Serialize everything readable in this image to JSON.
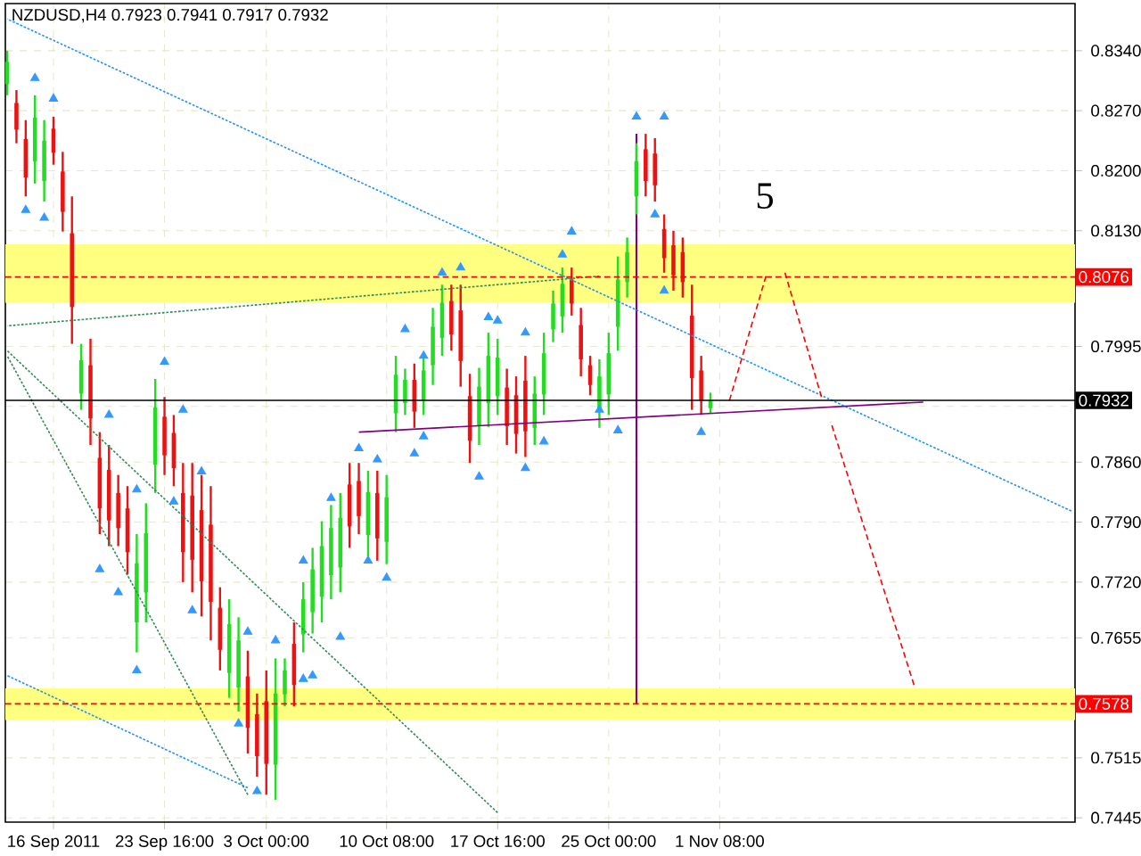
{
  "chart_data": {
    "type": "candlestick",
    "title": "NZDUSD,H4  0.7923 0.7941 0.7917 0.7932",
    "categories": [
      null,
      null,
      null,
      null,
      null,
      "16 Sep 2011",
      null,
      null,
      null,
      null,
      null,
      null,
      null,
      null,
      null,
      null,
      null,
      "23 Sep 16:00",
      null,
      null,
      null,
      null,
      null,
      null,
      null,
      null,
      null,
      null,
      "3 Oct 00:00",
      null,
      null,
      null,
      null,
      null,
      null,
      null,
      null,
      null,
      null,
      null,
      null,
      "10 Oct 08:00",
      null,
      null,
      null,
      null,
      null,
      null,
      null,
      null,
      null,
      null,
      null,
      "17 Oct 16:00",
      null,
      null,
      null,
      null,
      null,
      null,
      null,
      null,
      null,
      null,
      null,
      "25 Oct 00:00",
      null,
      null,
      null,
      null,
      null,
      null,
      null,
      null,
      null,
      null,
      null,
      "1 Nov 08:00",
      null,
      null,
      null,
      null,
      null,
      null,
      null,
      null,
      null,
      null,
      null,
      null,
      null,
      null,
      null,
      null,
      null,
      null,
      null,
      null,
      null,
      null,
      null,
      null,
      null,
      null,
      null,
      null,
      null,
      null,
      null,
      null,
      null,
      null,
      null,
      null,
      null,
      null
    ],
    "ohlc": [
      [
        0.8301,
        0.834,
        0.8288,
        0.8327
      ],
      [
        0.8279,
        0.8294,
        0.8232,
        0.8248
      ],
      [
        0.8237,
        0.8259,
        0.817,
        0.8192
      ],
      [
        0.8211,
        0.8288,
        0.8185,
        0.8262
      ],
      [
        0.8188,
        0.8259,
        0.8164,
        0.8235
      ],
      [
        0.8249,
        0.8263,
        0.8207,
        0.8221
      ],
      [
        0.8199,
        0.8222,
        0.8129,
        0.8152
      ],
      [
        0.8127,
        0.817,
        0.7998,
        0.8041
      ],
      [
        0.794,
        0.7998,
        0.7921,
        0.7979
      ],
      [
        0.7973,
        0.8004,
        0.788,
        0.7911
      ],
      [
        0.7865,
        0.7895,
        0.7776,
        0.7806
      ],
      [
        0.7851,
        0.788,
        0.7762,
        0.7792
      ],
      [
        0.7824,
        0.7845,
        0.7762,
        0.7783
      ],
      [
        0.7806,
        0.7832,
        0.7729,
        0.7755
      ],
      [
        0.7673,
        0.7776,
        0.7638,
        0.7742
      ],
      [
        0.7708,
        0.7812,
        0.7673,
        0.7777
      ],
      [
        0.7857,
        0.7957,
        0.7824,
        0.7924
      ],
      [
        0.7913,
        0.7936,
        0.7845,
        0.7868
      ],
      [
        0.7894,
        0.7915,
        0.7832,
        0.7853
      ],
      [
        0.7824,
        0.7859,
        0.772,
        0.7755
      ],
      [
        0.7821,
        0.7859,
        0.7708,
        0.7746
      ],
      [
        0.7804,
        0.7845,
        0.768,
        0.7721
      ],
      [
        0.7787,
        0.7832,
        0.7652,
        0.7697
      ],
      [
        0.769,
        0.7714,
        0.7617,
        0.7641
      ],
      [
        0.7614,
        0.77,
        0.7585,
        0.7671
      ],
      [
        0.7597,
        0.7679,
        0.7569,
        0.7652
      ],
      [
        0.761,
        0.764,
        0.752,
        0.755
      ],
      [
        0.7566,
        0.759,
        0.7493,
        0.7517
      ],
      [
        0.7581,
        0.7617,
        0.7472,
        0.7508
      ],
      [
        0.7507,
        0.7631,
        0.7466,
        0.759
      ],
      [
        0.7589,
        0.7631,
        0.7575,
        0.7617
      ],
      [
        0.7648,
        0.7673,
        0.7575,
        0.76
      ],
      [
        0.7659,
        0.772,
        0.7638,
        0.77
      ],
      [
        0.7685,
        0.776,
        0.766,
        0.7735
      ],
      [
        0.7703,
        0.7791,
        0.7673,
        0.7762
      ],
      [
        0.7728,
        0.781,
        0.77,
        0.7783
      ],
      [
        0.7737,
        0.7824,
        0.7708,
        0.7795
      ],
      [
        0.7834,
        0.7859,
        0.776,
        0.7785
      ],
      [
        0.7838,
        0.7859,
        0.7776,
        0.7797
      ],
      [
        0.7775,
        0.785,
        0.775,
        0.7825
      ],
      [
        0.7824,
        0.785,
        0.7745,
        0.7771
      ],
      [
        0.7767,
        0.7845,
        0.7741,
        0.7819
      ],
      [
        0.7917,
        0.7984,
        0.7895,
        0.7962
      ],
      [
        0.7929,
        0.7969,
        0.7915,
        0.7956
      ],
      [
        0.7956,
        0.7975,
        0.79,
        0.7919
      ],
      [
        0.7932,
        0.7984,
        0.7915,
        0.7967
      ],
      [
        0.7973,
        0.804,
        0.795,
        0.8018
      ],
      [
        0.8005,
        0.8067,
        0.7984,
        0.8046
      ],
      [
        0.8048,
        0.8067,
        0.799,
        0.8009
      ],
      [
        0.8037,
        0.8067,
        0.7948,
        0.7978
      ],
      [
        0.7937,
        0.7963,
        0.7859,
        0.7885
      ],
      [
        0.7903,
        0.797,
        0.788,
        0.7948
      ],
      [
        0.7929,
        0.8011,
        0.7901,
        0.7984
      ],
      [
        0.7937,
        0.8004,
        0.7915,
        0.7982
      ],
      [
        0.7947,
        0.7969,
        0.788,
        0.7902
      ],
      [
        0.7938,
        0.796,
        0.787,
        0.7893
      ],
      [
        0.7955,
        0.7984,
        0.7866,
        0.7896
      ],
      [
        0.79,
        0.796,
        0.788,
        0.794
      ],
      [
        0.7939,
        0.8011,
        0.7915,
        0.7987
      ],
      [
        0.8015,
        0.806,
        0.8,
        0.8045
      ],
      [
        0.803,
        0.8087,
        0.8011,
        0.8068
      ],
      [
        0.8073,
        0.8087,
        0.8031,
        0.8045
      ],
      [
        0.802,
        0.804,
        0.796,
        0.798
      ],
      [
        0.7973,
        0.7984,
        0.7938,
        0.795
      ],
      [
        0.792,
        0.798,
        0.79,
        0.796
      ],
      [
        0.7939,
        0.8011,
        0.7915,
        0.7987
      ],
      [
        0.8018,
        0.81,
        0.799,
        0.8073
      ],
      [
        0.807,
        0.8122,
        0.8052,
        0.8105
      ],
      [
        0.817,
        0.8232,
        0.8149,
        0.8211
      ],
      [
        0.8225,
        0.8243,
        0.817,
        0.8188
      ],
      [
        0.822,
        0.8238,
        0.8164,
        0.8183
      ],
      [
        0.8132,
        0.8149,
        0.8081,
        0.8098
      ],
      [
        0.8113,
        0.813,
        0.806,
        0.8078
      ],
      [
        0.8105,
        0.8122,
        0.8052,
        0.807
      ],
      [
        0.8031,
        0.8067,
        0.7921,
        0.7958
      ],
      [
        0.7967,
        0.7984,
        0.7915,
        0.7932
      ],
      [
        0.7923,
        0.7941,
        0.7917,
        0.7932
      ],
      null,
      null,
      null,
      null,
      null,
      null,
      null,
      null,
      null,
      null,
      null,
      null,
      null,
      null,
      null,
      null,
      null,
      null,
      null,
      null,
      null,
      null,
      null,
      null,
      null,
      null,
      null,
      null,
      null,
      null,
      null,
      null,
      null,
      null,
      null,
      null,
      null,
      null,
      null
    ],
    "colors": [
      "#22dd22",
      "#ee1111",
      "#ee1111",
      "#22dd22",
      "#22dd22",
      "#ee1111",
      "#ee1111",
      "#ee1111",
      "#22dd22",
      "#ee1111",
      "#ee1111",
      "#ee1111",
      "#ee1111",
      "#ee1111",
      "#22dd22",
      "#22dd22",
      "#22dd22",
      "#ee1111",
      "#ee1111",
      "#ee1111",
      "#ee1111",
      "#ee1111",
      "#ee1111",
      "#ee1111",
      "#22dd22",
      "#22dd22",
      "#ee1111",
      "#ee1111",
      "#ee1111",
      "#22dd22",
      "#22dd22",
      "#ee1111",
      "#22dd22",
      "#22dd22",
      "#22dd22",
      "#22dd22",
      "#22dd22",
      "#ee1111",
      "#ee1111",
      "#22dd22",
      "#ee1111",
      "#22dd22",
      "#22dd22",
      "#22dd22",
      "#ee1111",
      "#22dd22",
      "#22dd22",
      "#22dd22",
      "#ee1111",
      "#ee1111",
      "#ee1111",
      "#22dd22",
      "#22dd22",
      "#22dd22",
      "#ee1111",
      "#ee1111",
      "#ee1111",
      "#22dd22",
      "#22dd22",
      "#22dd22",
      "#22dd22",
      "#ee1111",
      "#ee1111",
      "#ee1111",
      "#22dd22",
      "#22dd22",
      "#22dd22",
      "#22dd22",
      "#22dd22",
      "#ee1111",
      "#ee1111",
      "#ee1111",
      "#ee1111",
      "#ee1111",
      "#ee1111",
      "#ee1111",
      "#22dd22",
      null,
      null,
      null,
      null,
      null,
      null,
      null,
      null,
      null,
      null,
      null,
      null,
      null,
      null,
      null,
      null,
      null,
      null,
      null,
      null,
      null,
      null,
      null,
      null,
      null,
      null,
      null,
      null,
      null,
      null,
      null,
      null,
      null,
      null,
      null,
      null,
      null,
      null,
      null
    ],
    "ylim": [
      0.744,
      0.8395
    ],
    "yticks": [
      {
        "value": 0.834,
        "label": "0.8340"
      },
      {
        "value": 0.827,
        "label": "0.8270"
      },
      {
        "value": 0.82,
        "label": "0.8200"
      },
      {
        "value": 0.813,
        "label": "0.8130"
      },
      {
        "value": 0.8065,
        "label": null
      },
      {
        "value": 0.7995,
        "label": "0.7995"
      },
      {
        "value": 0.7925,
        "label": null
      },
      {
        "value": 0.786,
        "label": "0.7860"
      },
      {
        "value": 0.779,
        "label": "0.7790"
      },
      {
        "value": 0.772,
        "label": "0.7720"
      },
      {
        "value": 0.7655,
        "label": "0.7655"
      },
      {
        "value": 0.7585,
        "label": null
      },
      {
        "value": 0.7515,
        "label": "0.7515"
      },
      {
        "value": 0.7445,
        "label": "0.7445"
      }
    ],
    "grid": true,
    "bands": [
      {
        "axis": "y",
        "from": 0.8046,
        "to": 0.8114,
        "color": "#ffff80"
      },
      {
        "axis": "y",
        "from": 0.7559,
        "to": 0.7596,
        "color": "#ffff80"
      }
    ],
    "ref_lines": [
      {
        "axis": "y",
        "value": 0.8076,
        "label": "0.8076",
        "color": "#ff0000",
        "line_style": "dashed"
      },
      {
        "axis": "y",
        "value": 0.7578,
        "label": "0.7578",
        "color": "#ff0000",
        "line_style": "dashed"
      },
      {
        "axis": "y",
        "value": 0.7932,
        "label": "0.7932",
        "color": "#000000",
        "line_style": "solid"
      }
    ],
    "annotations": [
      "5"
    ],
    "series": [
      {
        "type": "line",
        "color": "#1e90ff",
        "line_style": "dotted",
        "values": [
          0.8377,
          null,
          null,
          null,
          null,
          null,
          null,
          null,
          null,
          null,
          null,
          null,
          null,
          null,
          null,
          null,
          null,
          null,
          null,
          null,
          null,
          null,
          null,
          null,
          null,
          null,
          null,
          null,
          null,
          null,
          null,
          null,
          null,
          null,
          null,
          null,
          null,
          null,
          null,
          null,
          null,
          null,
          null,
          null,
          null,
          null,
          null,
          null,
          null,
          null,
          null,
          null,
          null,
          null,
          null,
          null,
          null,
          null,
          null,
          null,
          null,
          null,
          null,
          null,
          null,
          null,
          null,
          null,
          null,
          null,
          null,
          null,
          null,
          null,
          null,
          null,
          null,
          null,
          null,
          null,
          null,
          null,
          null,
          null,
          null,
          null,
          null,
          null,
          null,
          null,
          null,
          null,
          null,
          null,
          null,
          null,
          null,
          null,
          null,
          null,
          null,
          null,
          null,
          null,
          null,
          null,
          null,
          null,
          null,
          null,
          null,
          null,
          null,
          null,
          null,
          0.7803
        ]
      },
      {
        "type": "line",
        "color": "#1e90ff",
        "line_style": "dotted",
        "values": [
          0.7611,
          null,
          null,
          null,
          null,
          null,
          null,
          null,
          null,
          null,
          null,
          null,
          null,
          null,
          null,
          null,
          null,
          null,
          null,
          null,
          null,
          null,
          null,
          null,
          null,
          null,
          0.748,
          null,
          null,
          null,
          null,
          null,
          null,
          null,
          null,
          null,
          null,
          null,
          null,
          null,
          null,
          null,
          null,
          null,
          null,
          null,
          null,
          null,
          null,
          null,
          null,
          null,
          null,
          null,
          null,
          null,
          null,
          null,
          null,
          null,
          null,
          null,
          null,
          null,
          null,
          null,
          null,
          null,
          null,
          null,
          null,
          null,
          null,
          null,
          null,
          null,
          null,
          null,
          null,
          null,
          null,
          null,
          null,
          null,
          null,
          null,
          null,
          null,
          null,
          null,
          null,
          null,
          null,
          null,
          null,
          null,
          null,
          null,
          null,
          null,
          null,
          null,
          null,
          null,
          null,
          null,
          null,
          null,
          null,
          null,
          null,
          null,
          null,
          null,
          null,
          null
        ]
      },
      {
        "type": "line",
        "color": "#2e8b57",
        "line_style": "dotted",
        "values": [
          0.8019,
          null,
          null,
          null,
          null,
          null,
          null,
          null,
          null,
          null,
          null,
          null,
          null,
          null,
          null,
          null,
          null,
          null,
          null,
          null,
          null,
          null,
          null,
          null,
          null,
          null,
          null,
          null,
          null,
          null,
          null,
          null,
          null,
          null,
          null,
          null,
          null,
          null,
          null,
          null,
          null,
          null,
          null,
          null,
          null,
          null,
          null,
          null,
          null,
          null,
          null,
          null,
          null,
          null,
          null,
          null,
          null,
          null,
          null,
          null,
          null,
          null,
          null,
          null,
          0.8077,
          null,
          null,
          null,
          null,
          null,
          null,
          null,
          null,
          null,
          null,
          null,
          null,
          null,
          null,
          null,
          null,
          null,
          null,
          null,
          null,
          null,
          null,
          null,
          null,
          null,
          null,
          null,
          null,
          null,
          null,
          null,
          null,
          null,
          null,
          null,
          null,
          null,
          null,
          null,
          null,
          null,
          null,
          null,
          null,
          null,
          null,
          null,
          null,
          null,
          null,
          null
        ]
      },
      {
        "type": "line",
        "color": "#2e8b57",
        "line_style": "dotted",
        "values": [
          0.799,
          null,
          null,
          null,
          null,
          null,
          null,
          null,
          null,
          null,
          null,
          null,
          null,
          null,
          null,
          null,
          null,
          null,
          null,
          null,
          null,
          null,
          null,
          null,
          null,
          null,
          null,
          null,
          null,
          null,
          null,
          null,
          null,
          null,
          null,
          null,
          null,
          null,
          null,
          null,
          null,
          null,
          null,
          null,
          null,
          null,
          null,
          null,
          null,
          null,
          null,
          null,
          null,
          0.7451,
          null,
          null,
          null,
          null,
          null,
          null,
          null,
          null,
          null,
          null,
          null,
          null,
          null,
          null,
          null,
          null,
          null,
          null,
          null,
          null,
          null,
          null,
          null,
          null,
          null,
          null,
          null,
          null,
          null,
          null,
          null,
          null,
          null,
          null,
          null,
          null,
          null,
          null,
          null,
          null,
          null,
          null,
          null,
          null,
          null,
          null,
          null,
          null,
          null,
          null,
          null,
          null,
          null,
          null,
          null,
          null,
          null,
          null,
          null,
          null,
          null,
          null
        ]
      },
      {
        "type": "line",
        "color": "#2e8b57",
        "line_style": "dotted",
        "values": [
          0.7984,
          null,
          null,
          null,
          null,
          null,
          null,
          null,
          null,
          null,
          null,
          null,
          null,
          null,
          null,
          null,
          null,
          null,
          null,
          null,
          null,
          null,
          null,
          null,
          null,
          null,
          0.7472,
          null,
          null,
          null,
          null,
          null,
          null,
          null,
          null,
          null,
          null,
          null,
          null,
          null,
          null,
          null,
          null,
          null,
          null,
          null,
          null,
          null,
          null,
          null,
          null,
          null,
          null,
          null,
          null,
          null,
          null,
          null,
          null,
          null,
          null,
          null,
          null,
          null,
          null,
          null,
          null,
          null,
          null,
          null,
          null,
          null,
          null,
          null,
          null,
          null,
          null,
          null,
          null,
          null,
          null,
          null,
          null,
          null,
          null,
          null,
          null,
          null,
          null,
          null,
          null,
          null,
          null,
          null,
          null,
          null,
          null,
          null,
          null,
          null,
          null,
          null,
          null,
          null,
          null,
          null,
          null,
          null,
          null,
          null,
          null,
          null,
          null,
          null,
          null,
          null
        ]
      },
      {
        "type": "line",
        "color": "#800080",
        "line_style": "solid",
        "values": [
          null,
          null,
          null,
          null,
          null,
          null,
          null,
          null,
          null,
          null,
          null,
          null,
          null,
          null,
          null,
          null,
          null,
          null,
          null,
          null,
          null,
          null,
          null,
          null,
          null,
          null,
          null,
          null,
          null,
          null,
          null,
          null,
          null,
          null,
          null,
          null,
          null,
          null,
          0.7895,
          null,
          null,
          null,
          null,
          null,
          null,
          null,
          null,
          null,
          null,
          null,
          null,
          null,
          null,
          null,
          null,
          null,
          null,
          null,
          null,
          null,
          null,
          null,
          null,
          null,
          null,
          null,
          null,
          null,
          null,
          null,
          null,
          null,
          null,
          null,
          null,
          null,
          null,
          null,
          null,
          null,
          null,
          null,
          null,
          null,
          null,
          null,
          null,
          null,
          null,
          null,
          null,
          null,
          null,
          null,
          null,
          null,
          null,
          null,
          null,
          0.793,
          null,
          null,
          null,
          null,
          null,
          null,
          null,
          null,
          null,
          null,
          null,
          null,
          null,
          null,
          null,
          null
        ]
      },
      {
        "type": "bar",
        "color": "#800080",
        "values": [
          null,
          null,
          null,
          null,
          null,
          null,
          null,
          null,
          null,
          null,
          null,
          null,
          null,
          null,
          null,
          null,
          null,
          null,
          null,
          null,
          null,
          null,
          null,
          null,
          null,
          null,
          null,
          null,
          null,
          null,
          null,
          null,
          null,
          null,
          null,
          null,
          null,
          null,
          null,
          null,
          null,
          null,
          null,
          null,
          null,
          null,
          null,
          null,
          null,
          null,
          null,
          null,
          null,
          null,
          null,
          null,
          null,
          null,
          null,
          null,
          null,
          null,
          null,
          null,
          null,
          null,
          null,
          null,
          0.0665,
          null,
          null,
          null,
          null,
          null,
          null,
          null,
          null,
          null,
          null,
          null,
          null,
          null,
          null,
          null,
          null,
          null,
          null,
          null,
          null,
          null,
          null,
          null,
          null,
          null,
          null,
          null,
          null,
          null,
          null,
          null,
          null,
          null,
          null,
          null,
          null,
          null,
          null,
          null,
          null,
          null,
          null,
          null,
          null,
          null,
          null,
          null
        ],
        "base": [
          null,
          null,
          null,
          null,
          null,
          null,
          null,
          null,
          null,
          null,
          null,
          null,
          null,
          null,
          null,
          null,
          null,
          null,
          null,
          null,
          null,
          null,
          null,
          null,
          null,
          null,
          null,
          null,
          null,
          null,
          null,
          null,
          null,
          null,
          null,
          null,
          null,
          null,
          null,
          null,
          null,
          null,
          null,
          null,
          null,
          null,
          null,
          null,
          null,
          null,
          null,
          null,
          null,
          null,
          null,
          null,
          null,
          null,
          null,
          null,
          null,
          null,
          null,
          null,
          null,
          null,
          null,
          null,
          0.7578,
          null,
          null,
          null,
          null,
          null,
          null,
          null,
          null,
          null,
          null,
          null,
          null,
          null,
          null,
          null,
          null,
          null,
          null,
          null,
          null,
          null,
          null,
          null,
          null,
          null,
          null,
          null,
          null,
          null,
          null,
          null,
          null,
          null,
          null,
          null,
          null,
          null,
          null,
          null,
          null,
          null,
          null,
          null,
          null,
          null,
          null,
          null
        ]
      },
      {
        "type": "line",
        "color": "#ff0000",
        "line_style": "dashed",
        "values": [
          null,
          null,
          null,
          null,
          null,
          null,
          null,
          null,
          null,
          null,
          null,
          null,
          null,
          null,
          null,
          null,
          null,
          null,
          null,
          null,
          null,
          null,
          null,
          null,
          null,
          null,
          null,
          null,
          null,
          null,
          null,
          null,
          null,
          null,
          null,
          null,
          null,
          null,
          null,
          null,
          null,
          null,
          null,
          null,
          null,
          null,
          null,
          null,
          null,
          null,
          null,
          null,
          null,
          null,
          null,
          null,
          null,
          null,
          null,
          null,
          null,
          null,
          null,
          null,
          null,
          null,
          null,
          null,
          null,
          null,
          null,
          null,
          null,
          null,
          null,
          null,
          null,
          null,
          0.793,
          null,
          null,
          null,
          0.8077,
          null,
          null,
          null,
          null,
          null,
          null,
          null,
          null,
          null,
          null,
          null,
          null,
          null,
          null,
          null,
          null,
          null,
          null,
          null,
          null,
          null,
          null,
          null,
          null,
          null,
          null,
          null,
          null,
          null,
          null,
          null,
          null,
          null
        ]
      },
      {
        "type": "line",
        "color": "#ff0000",
        "line_style": "dashed",
        "values": [
          null,
          null,
          null,
          null,
          null,
          null,
          null,
          null,
          null,
          null,
          null,
          null,
          null,
          null,
          null,
          null,
          null,
          null,
          null,
          null,
          null,
          null,
          null,
          null,
          null,
          null,
          null,
          null,
          null,
          null,
          null,
          null,
          null,
          null,
          null,
          null,
          null,
          null,
          null,
          null,
          null,
          null,
          null,
          null,
          null,
          null,
          null,
          null,
          null,
          null,
          null,
          null,
          null,
          null,
          null,
          null,
          null,
          null,
          null,
          null,
          null,
          null,
          null,
          null,
          null,
          null,
          null,
          null,
          null,
          null,
          null,
          null,
          null,
          null,
          null,
          null,
          null,
          null,
          null,
          null,
          null,
          null,
          null,
          null,
          0.8083,
          null,
          null,
          null,
          0.7936,
          null,
          null,
          null,
          null,
          null,
          null,
          null,
          null,
          null,
          null,
          null,
          null,
          null,
          null,
          null,
          null,
          null,
          null,
          null,
          null,
          null,
          null,
          null,
          null,
          null,
          null,
          null
        ]
      },
      {
        "type": "line",
        "color": "#ff0000",
        "line_style": "dashed",
        "values": [
          null,
          null,
          null,
          null,
          null,
          null,
          null,
          null,
          null,
          null,
          null,
          null,
          null,
          null,
          null,
          null,
          null,
          null,
          null,
          null,
          null,
          null,
          null,
          null,
          null,
          null,
          null,
          null,
          null,
          null,
          null,
          null,
          null,
          null,
          null,
          null,
          null,
          null,
          null,
          null,
          null,
          null,
          null,
          null,
          null,
          null,
          null,
          null,
          null,
          null,
          null,
          null,
          null,
          null,
          null,
          null,
          null,
          null,
          null,
          null,
          null,
          null,
          null,
          null,
          null,
          null,
          null,
          null,
          null,
          null,
          null,
          null,
          null,
          null,
          null,
          null,
          null,
          null,
          null,
          null,
          null,
          null,
          null,
          null,
          null,
          null,
          null,
          null,
          null,
          0.7907,
          null,
          null,
          null,
          null,
          null,
          null,
          null,
          null,
          0.76,
          null,
          null,
          null,
          null,
          null,
          null,
          null,
          null,
          null,
          null,
          null,
          null,
          null,
          null,
          null,
          null,
          null
        ]
      },
      {
        "type": "scatter",
        "color": "#3399ff",
        "marker": "triangle",
        "values": [
          null,
          null,
          null,
          0.8308,
          null,
          0.8284,
          null,
          null,
          null,
          null,
          null,
          0.7915,
          null,
          null,
          0.7828,
          null,
          null,
          0.7977,
          null,
          0.7921,
          null,
          0.7849,
          null,
          null,
          null,
          null,
          0.7662,
          null,
          null,
          0.7652,
          null,
          null,
          0.7745,
          null,
          null,
          0.7818,
          null,
          null,
          0.7876,
          null,
          0.7863,
          null,
          null,
          0.8015,
          null,
          0.7984,
          null,
          0.8081,
          null,
          0.8087,
          null,
          null,
          0.8029,
          0.8025,
          null,
          null,
          0.8011,
          null,
          null,
          null,
          0.8102,
          0.8129,
          null,
          null,
          null,
          null,
          null,
          null,
          0.8263,
          null,
          null,
          0.8263,
          null,
          null,
          null,
          null,
          null,
          null,
          null,
          null,
          null,
          null,
          null,
          null,
          null,
          null,
          null,
          null,
          null,
          null,
          null,
          null,
          null,
          null,
          null,
          null,
          null,
          null,
          null,
          null,
          null,
          null,
          null,
          null,
          null,
          null,
          null,
          null,
          null,
          null,
          null,
          null,
          null,
          null,
          null,
          null
        ]
      },
      {
        "type": "scatter",
        "color": "#3399ff",
        "marker": "triangle",
        "values": [
          null,
          null,
          0.8154,
          null,
          0.8145,
          null,
          null,
          null,
          null,
          null,
          0.7735,
          null,
          0.7708,
          null,
          0.7617,
          null,
          null,
          null,
          0.7814,
          null,
          0.7687,
          null,
          null,
          null,
          null,
          0.7555,
          null,
          0.7476,
          null,
          null,
          null,
          null,
          0.7607,
          0.7611,
          null,
          null,
          0.7656,
          null,
          null,
          0.7745,
          null,
          0.7725,
          null,
          null,
          0.787,
          0.789,
          null,
          null,
          null,
          null,
          null,
          0.7843,
          null,
          null,
          null,
          null,
          0.7853,
          null,
          0.7884,
          null,
          null,
          null,
          null,
          null,
          0.7921,
          null,
          0.7897,
          null,
          null,
          null,
          0.8149,
          0.806,
          null,
          null,
          null,
          0.7895,
          null,
          null,
          null,
          null,
          null,
          null,
          null,
          null,
          null,
          null,
          null,
          null,
          null,
          null,
          null,
          null,
          null,
          null,
          null,
          null,
          null,
          null,
          null,
          null,
          null,
          null,
          null,
          null,
          null,
          null,
          null,
          null,
          null,
          null,
          null,
          null,
          null,
          null,
          null,
          null
        ]
      }
    ]
  }
}
